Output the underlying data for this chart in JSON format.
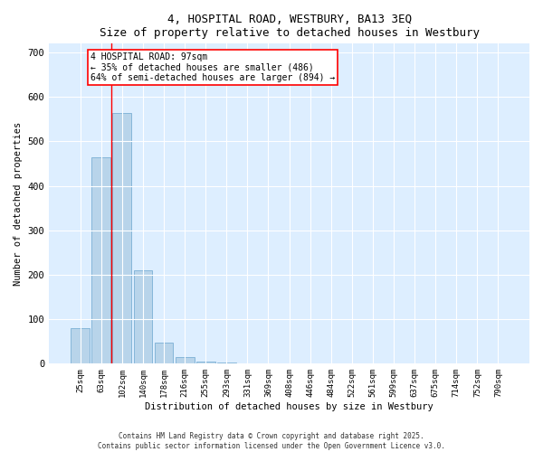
{
  "title": "4, HOSPITAL ROAD, WESTBURY, BA13 3EQ",
  "subtitle": "Size of property relative to detached houses in Westbury",
  "xlabel": "Distribution of detached houses by size in Westbury",
  "ylabel": "Number of detached properties",
  "categories": [
    "25sqm",
    "63sqm",
    "102sqm",
    "140sqm",
    "178sqm",
    "216sqm",
    "255sqm",
    "293sqm",
    "331sqm",
    "369sqm",
    "408sqm",
    "446sqm",
    "484sqm",
    "522sqm",
    "561sqm",
    "599sqm",
    "637sqm",
    "675sqm",
    "714sqm",
    "752sqm",
    "790sqm"
  ],
  "values": [
    80,
    465,
    565,
    210,
    48,
    15,
    4,
    2,
    1,
    1,
    1,
    0,
    0,
    0,
    0,
    0,
    0,
    0,
    0,
    0,
    0
  ],
  "bar_color": "#b8d4ea",
  "bar_edge_color": "#7aafd4",
  "annotation_text_line1": "4 HOSPITAL ROAD: 97sqm",
  "annotation_text_line2": "← 35% of detached houses are smaller (486)",
  "annotation_text_line3": "64% of semi-detached houses are larger (894) →",
  "red_line_x": 1.5,
  "ylim": [
    0,
    720
  ],
  "yticks": [
    0,
    100,
    200,
    300,
    400,
    500,
    600,
    700
  ],
  "background_color": "#ddeeff",
  "footer_line1": "Contains HM Land Registry data © Crown copyright and database right 2025.",
  "footer_line2": "Contains public sector information licensed under the Open Government Licence v3.0."
}
